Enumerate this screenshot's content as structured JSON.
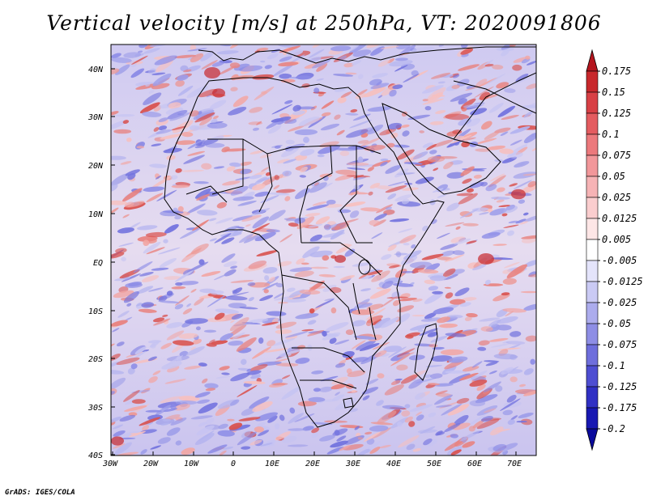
{
  "title": "Vertical velocity [m/s] at 250hPa, VT: 2020091806",
  "credit": "GrADS: IGES/COLA",
  "axes": {
    "lat_labels": [
      "40N",
      "30N",
      "20N",
      "10N",
      "EQ",
      "10S",
      "20S",
      "30S",
      "40S"
    ],
    "lon_labels": [
      "30W",
      "20W",
      "10W",
      "0",
      "10E",
      "20E",
      "30E",
      "40E",
      "50E",
      "60E",
      "70E"
    ]
  },
  "colorbar": {
    "levels": [
      "0.175",
      "0.15",
      "0.125",
      "0.1",
      "0.075",
      "0.05",
      "0.025",
      "0.0125",
      "0.005",
      "-0.005",
      "-0.0125",
      "-0.025",
      "-0.05",
      "-0.075",
      "-0.1",
      "-0.125",
      "-0.175",
      "-0.2"
    ],
    "colors": [
      "#b4151e",
      "#c8282c",
      "#d84045",
      "#e45c60",
      "#ec797c",
      "#f2979a",
      "#f6b3b5",
      "#facdce",
      "#fde6e6",
      "#ffffff",
      "#e4e4fb",
      "#cacaf4",
      "#acaced",
      "#8e8ee5",
      "#6e6edc",
      "#4e4ed2",
      "#3030c4",
      "#1818b2",
      "#0a0a9c"
    ]
  },
  "palette": {
    "positive": "#e8827f",
    "negative": "#8a8ae6",
    "neutral": "#f2eefa",
    "border": "#000000"
  }
}
